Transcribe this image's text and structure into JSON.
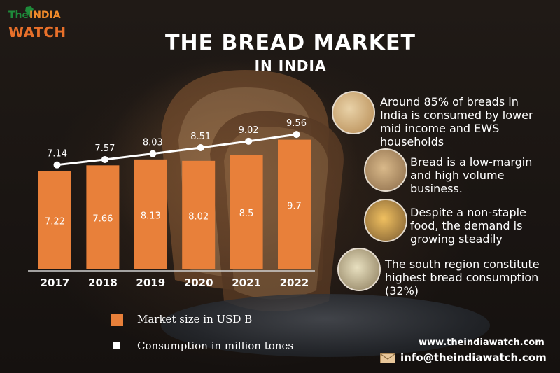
{
  "logo": {
    "the": "The",
    "india": "INDIA",
    "watch": "WATCH"
  },
  "header": {
    "title": "THE BREAD MARKET",
    "subtitle": "IN INDIA"
  },
  "chart_data": {
    "type": "bar",
    "categories": [
      "2017",
      "2018",
      "2019",
      "2020",
      "2021",
      "2022"
    ],
    "series": [
      {
        "name": "Market size in USD B",
        "type": "bar",
        "values": [
          7.22,
          7.66,
          8.13,
          8.02,
          8.5,
          9.7
        ]
      },
      {
        "name": "Consumption in million tones",
        "type": "line",
        "values": [
          7.14,
          7.57,
          8.03,
          8.51,
          9.02,
          9.56
        ]
      }
    ],
    "legend": [
      "Market size in USD B",
      "Consumption in million tones"
    ],
    "bar_color": "#e8803a",
    "line_color": "#ffffff"
  },
  "info": [
    {
      "icon": "bread-slices-icon",
      "text": "Around 85% of breads in India is consumed by lower mid income and EWS households"
    },
    {
      "icon": "bread-basket-icon",
      "text": "Bread is a low-margin and high volume business."
    },
    {
      "icon": "grocery-items-icon",
      "text": "Despite a non-staple food, the demand is growing steadily"
    },
    {
      "icon": "south-indian-dish-icon",
      "text": "The south region constitute highest bread consumption (32%)"
    }
  ],
  "footer": {
    "website": "www.theindiawatch.com",
    "email": "info@theindiawatch.com"
  }
}
